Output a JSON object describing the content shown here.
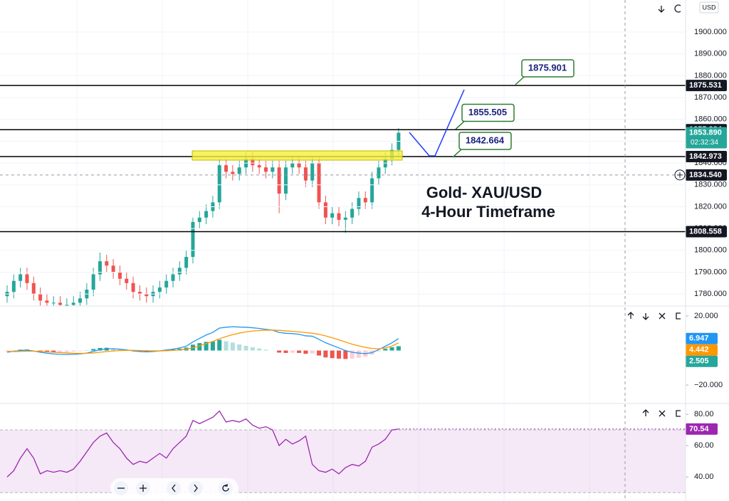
{
  "chart_data": [
    {
      "type": "candlestick",
      "title": "Gold- XAU/USD",
      "subtitle": "4-Hour Timeframe",
      "currency": "USD",
      "open": [
        1779,
        1781,
        1786,
        1789,
        1785,
        1780,
        1777,
        1776,
        1776,
        1775,
        1775,
        1776,
        1778,
        1782,
        1789,
        1795,
        1793,
        1790,
        1787,
        1785,
        1781,
        1780,
        1779,
        1781,
        1783,
        1786,
        1789,
        1792,
        1797,
        1813,
        1815,
        1818,
        1822,
        1839,
        1836,
        1835,
        1838,
        1842,
        1839,
        1838,
        1836,
        1838,
        1826,
        1838,
        1840,
        1838,
        1832,
        1840,
        1822,
        1815,
        1817,
        1814,
        1815,
        1819,
        1824,
        1822,
        1833,
        1838,
        1842,
        1846
      ],
      "high": [
        1784,
        1789,
        1792,
        1792,
        1788,
        1783,
        1780,
        1779,
        1779,
        1778,
        1779,
        1781,
        1785,
        1792,
        1799,
        1798,
        1796,
        1793,
        1790,
        1788,
        1784,
        1783,
        1784,
        1786,
        1789,
        1792,
        1795,
        1800,
        1815,
        1818,
        1821,
        1825,
        1842,
        1842,
        1839,
        1841,
        1845,
        1845,
        1842,
        1841,
        1841,
        1841,
        1841,
        1843,
        1843,
        1841,
        1843,
        1843,
        1825,
        1820,
        1820,
        1818,
        1822,
        1827,
        1827,
        1836,
        1841,
        1845,
        1849,
        1856
      ],
      "low": [
        1776,
        1778,
        1783,
        1782,
        1777,
        1774,
        1773,
        1773,
        1772,
        1772,
        1772,
        1773,
        1775,
        1779,
        1786,
        1790,
        1787,
        1784,
        1782,
        1778,
        1777,
        1776,
        1776,
        1778,
        1780,
        1783,
        1786,
        1789,
        1794,
        1810,
        1812,
        1815,
        1819,
        1833,
        1832,
        1832,
        1835,
        1836,
        1835,
        1833,
        1833,
        1817,
        1823,
        1835,
        1835,
        1829,
        1829,
        1819,
        1812,
        1812,
        1811,
        1808,
        1812,
        1816,
        1819,
        1819,
        1830,
        1835,
        1839,
        1843
      ],
      "close": [
        1781,
        1786,
        1789,
        1785,
        1780,
        1777,
        1776,
        1776,
        1775,
        1775,
        1776,
        1778,
        1782,
        1789,
        1795,
        1793,
        1790,
        1787,
        1785,
        1781,
        1780,
        1779,
        1781,
        1783,
        1786,
        1789,
        1792,
        1797,
        1813,
        1815,
        1818,
        1822,
        1839,
        1836,
        1835,
        1838,
        1842,
        1839,
        1838,
        1836,
        1838,
        1826,
        1838,
        1840,
        1838,
        1832,
        1840,
        1822,
        1815,
        1817,
        1814,
        1815,
        1819,
        1824,
        1822,
        1833,
        1838,
        1842,
        1846,
        1853.89
      ],
      "up_color": "#26a69a",
      "down_color": "#ef5350",
      "ylim": [
        1774.5,
        1914.7
      ],
      "yticks": [
        {
          "value": 1780,
          "label": "1780.000"
        },
        {
          "value": 1790,
          "label": "1790.000"
        },
        {
          "value": 1800,
          "label": "1800.000"
        },
        {
          "value": 1810,
          "label": "1810.000"
        },
        {
          "value": 1820,
          "label": "1820.000"
        },
        {
          "value": 1830,
          "label": "1830.000"
        },
        {
          "value": 1840,
          "label": "1840.000"
        },
        {
          "value": 1850,
          "label": "1850.000"
        },
        {
          "value": 1860,
          "label": "1860.000"
        },
        {
          "value": 1870,
          "label": "1870.000"
        },
        {
          "value": 1880,
          "label": "1880.000"
        },
        {
          "value": 1890,
          "label": "1890.000"
        },
        {
          "value": 1900,
          "label": "1900.000"
        }
      ],
      "grid": true,
      "levels": [
        1875.531,
        1855.284,
        1842.973,
        1808.558
      ],
      "last_price_label": "1853.890",
      "countdown": "02:32:34",
      "crosshair": {
        "value": 1834.54,
        "label": "1834.540"
      },
      "annotations": [
        1875.901,
        1855.505,
        1842.664
      ]
    },
    {
      "type": "macd",
      "series": [
        {
          "color": "#2196f3",
          "values": [
            -1,
            -0.5,
            0,
            0.2,
            -0.3,
            -1,
            -1.5,
            -2,
            -2.2,
            -2.3,
            -2.2,
            -2,
            -1.5,
            -0.5,
            0.5,
            1,
            1,
            0.8,
            0.4,
            -0.2,
            -0.6,
            -0.8,
            -0.6,
            -0.2,
            0.3,
            0.8,
            1.5,
            2.5,
            5,
            7,
            9,
            10.5,
            13,
            13.5,
            13.8,
            13.6,
            13.5,
            13.2,
            12.8,
            12.3,
            11.8,
            10.5,
            10,
            9.8,
            9.4,
            8.5,
            8.3,
            6.5,
            4.5,
            3,
            1.5,
            0,
            -1,
            -1.5,
            -1.8,
            -1.2,
            0.5,
            2.5,
            4.5,
            6.947
          ]
        },
        {
          "color": "#ff9800",
          "values": [
            -0.5,
            -0.6,
            -0.5,
            -0.4,
            -0.4,
            -0.5,
            -0.7,
            -1,
            -1.2,
            -1.4,
            -1.6,
            -1.7,
            -1.6,
            -1.4,
            -1,
            -0.6,
            -0.3,
            0,
            0.1,
            0.1,
            0,
            -0.1,
            -0.2,
            -0.2,
            -0.1,
            0.1,
            0.4,
            0.8,
            1.6,
            2.7,
            4,
            5.3,
            6.8,
            8.1,
            9.2,
            10.1,
            10.8,
            11.3,
            11.6,
            11.8,
            11.8,
            11.7,
            11.4,
            11.1,
            10.8,
            10.4,
            10,
            9.4,
            8.5,
            7.4,
            6.2,
            4.9,
            3.7,
            2.7,
            1.8,
            1.2,
            1,
            1.5,
            2.6,
            4.442
          ]
        },
        {
          "color": "#26a69a",
          "style": "histogram",
          "colors": [
            "#26a69a",
            "#b2dfdb",
            "#ffcdd2",
            "#ef5350"
          ],
          "values": [
            -0.5,
            0.1,
            0.5,
            0.6,
            0.1,
            -0.5,
            -0.8,
            -1,
            -1,
            -0.9,
            -0.6,
            -0.3,
            0.1,
            0.9,
            1.5,
            1.6,
            1.3,
            0.8,
            0.3,
            -0.3,
            -0.6,
            -0.7,
            -0.4,
            0,
            0.4,
            0.7,
            1.1,
            1.7,
            3.4,
            4.3,
            5,
            5.2,
            6.2,
            5.4,
            4.6,
            3.5,
            2.7,
            1.9,
            1.2,
            0.5,
            0,
            -1.2,
            -1.4,
            -1.3,
            -1.4,
            -1.9,
            -1.7,
            -2.9,
            -4,
            -4.4,
            -4.7,
            -4.9,
            -4.7,
            -4.2,
            -3.6,
            -2.4,
            -0.5,
            1,
            1.9,
            2.505
          ]
        }
      ],
      "ylim": [
        -30.7,
        25.8
      ],
      "yticks": [
        {
          "value": 20,
          "label": "20.000"
        },
        {
          "value": -20,
          "label": "−20.000"
        }
      ]
    },
    {
      "type": "rsi",
      "series": [
        {
          "color": "#9c27b0",
          "values": [
            40,
            44,
            52,
            58,
            52,
            42,
            44,
            43,
            44,
            43,
            45,
            50,
            56,
            62,
            66,
            68,
            62,
            58,
            52,
            48,
            50,
            49,
            52,
            55,
            52,
            58,
            62,
            66,
            76,
            74,
            76,
            78,
            82,
            75,
            76,
            75,
            77,
            73,
            71,
            72,
            70,
            60,
            64,
            61,
            63,
            66,
            48,
            44,
            43,
            45,
            42,
            46,
            48,
            47,
            50,
            59,
            61,
            64,
            70,
            70.54
          ]
        }
      ],
      "band": [
        30,
        70
      ],
      "band_color": "#9c27b0",
      "ylim": [
        24.7,
        86.8
      ],
      "yticks": [
        {
          "value": 80,
          "label": "80.00"
        },
        {
          "value": 60,
          "label": "60.00"
        },
        {
          "value": 40,
          "label": "40.00"
        }
      ]
    }
  ]
}
